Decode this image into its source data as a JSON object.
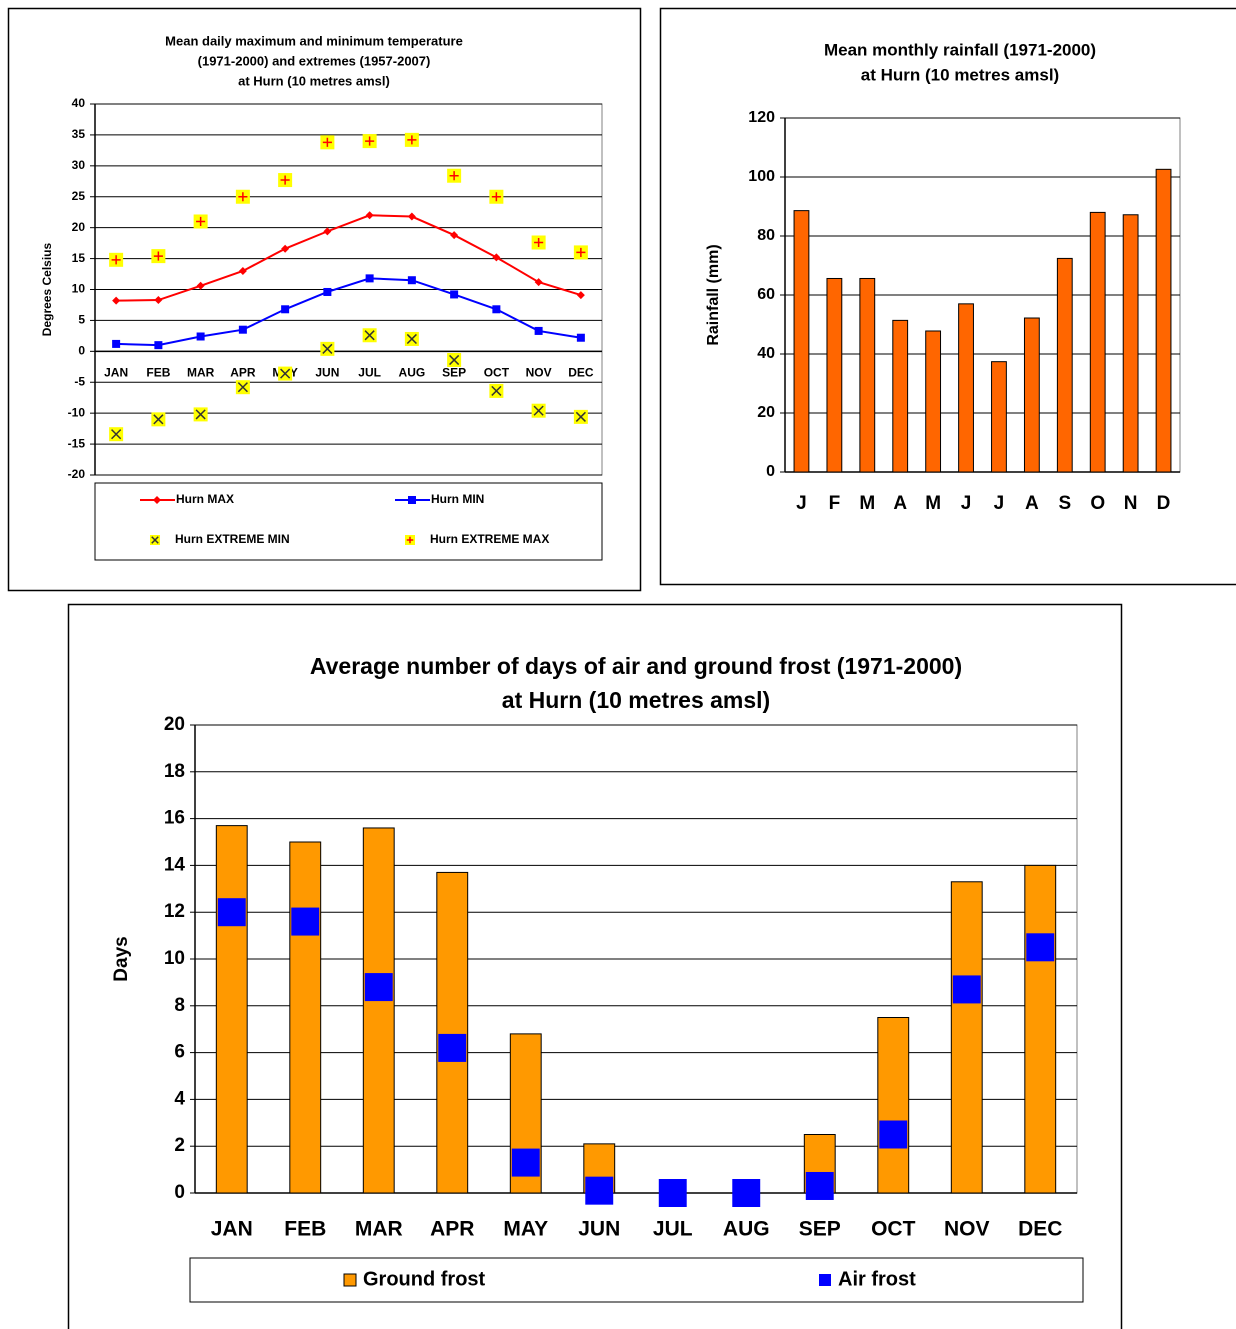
{
  "chart_data": [
    {
      "type": "line",
      "title": [
        "Mean daily maximum and minimum temperature",
        "(1971-2000) and extremes (1957-2007)",
        "at Hurn (10 metres amsl)"
      ],
      "y_label": "Degrees Celsius",
      "categories": [
        "JAN",
        "FEB",
        "MAR",
        "APR",
        "MAY",
        "JUN",
        "JUL",
        "AUG",
        "SEP",
        "OCT",
        "NOV",
        "DEC"
      ],
      "ylim": [
        -20,
        40
      ],
      "yticks": [
        40,
        35,
        30,
        25,
        20,
        15,
        10,
        5,
        0,
        -5,
        -10,
        -15,
        -20
      ],
      "grid": true,
      "series": [
        {
          "name": "Hurn MAX",
          "kind": "line",
          "marker": "diamond",
          "color": "#ff0000",
          "values": [
            8.2,
            8.3,
            10.6,
            13.0,
            16.6,
            19.4,
            22.0,
            21.8,
            18.8,
            15.2,
            11.2,
            9.1
          ]
        },
        {
          "name": "Hurn MIN",
          "kind": "line",
          "marker": "square",
          "color": "#0000ff",
          "values": [
            1.2,
            1.0,
            2.4,
            3.5,
            6.8,
            9.6,
            11.8,
            11.5,
            9.2,
            6.8,
            3.3,
            2.2
          ]
        },
        {
          "name": "Hurn EXTREME MIN",
          "kind": "points",
          "marker": "x",
          "color": "#ffff00",
          "symbol_color": "#333333",
          "values": [
            -13.4,
            -11.0,
            -10.2,
            -5.8,
            -3.6,
            0.4,
            2.6,
            2.0,
            -1.4,
            -6.4,
            -9.6,
            -10.6
          ]
        },
        {
          "name": "Hurn EXTREME MAX",
          "kind": "points",
          "marker": "plus",
          "color": "#ffff00",
          "symbol_color": "#ff0000",
          "values": [
            14.8,
            15.4,
            21.0,
            25.0,
            27.7,
            33.8,
            34.0,
            34.2,
            28.4,
            25.0,
            17.6,
            16.0
          ]
        }
      ]
    },
    {
      "type": "bar",
      "title": [
        "Mean monthly rainfall (1971-2000)",
        "at Hurn (10 metres amsl)"
      ],
      "y_label": "Rainfall (mm)",
      "categories": [
        "J",
        "F",
        "M",
        "A",
        "M",
        "J",
        "J",
        "A",
        "S",
        "O",
        "N",
        "D"
      ],
      "ylim": [
        0,
        120
      ],
      "yticks": [
        0,
        20,
        40,
        60,
        80,
        100,
        120
      ],
      "grid": true,
      "series": [
        {
          "name": "Rainfall",
          "kind": "bar",
          "color": "#ff6600",
          "values": [
            88.6,
            65.6,
            65.6,
            51.4,
            47.8,
            57.0,
            37.4,
            52.2,
            72.4,
            88.0,
            87.2,
            102.6
          ]
        }
      ]
    },
    {
      "type": "bar",
      "title": [
        "Average number of days of air and ground frost (1971-2000)",
        "at Hurn (10 metres amsl)"
      ],
      "y_label": "Days",
      "categories": [
        "JAN",
        "FEB",
        "MAR",
        "APR",
        "MAY",
        "JUN",
        "JUL",
        "AUG",
        "SEP",
        "OCT",
        "NOV",
        "DEC"
      ],
      "ylim": [
        0,
        20
      ],
      "yticks": [
        0,
        2,
        4,
        6,
        8,
        10,
        12,
        14,
        16,
        18,
        20
      ],
      "grid": true,
      "series": [
        {
          "name": "Ground frost",
          "kind": "bar",
          "color": "#ff9900",
          "values": [
            15.7,
            15.0,
            15.6,
            13.7,
            6.8,
            2.1,
            0,
            0,
            2.5,
            7.5,
            13.3,
            14.0
          ]
        },
        {
          "name": "Air frost",
          "kind": "marker",
          "color": "#0000ff",
          "values": [
            12.0,
            11.6,
            8.8,
            6.2,
            1.3,
            0.1,
            0,
            0,
            0.3,
            2.5,
            8.7,
            10.5
          ]
        }
      ]
    }
  ]
}
